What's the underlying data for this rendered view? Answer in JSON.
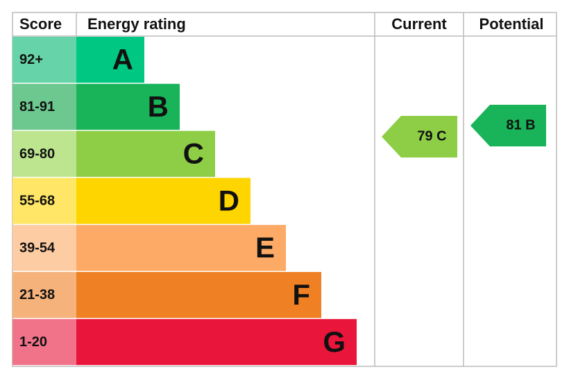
{
  "header": {
    "score": "Score",
    "rating": "Energy rating",
    "current": "Current",
    "potential": "Potential"
  },
  "bands": [
    {
      "score": "92+",
      "letter": "A",
      "color": "#00c781",
      "light": "#66d4a8"
    },
    {
      "score": "81-91",
      "letter": "B",
      "color": "#19b459",
      "light": "#6cc88f"
    },
    {
      "score": "69-80",
      "letter": "C",
      "color": "#8dce46",
      "light": "#bde58f"
    },
    {
      "score": "55-68",
      "letter": "D",
      "color": "#ffd500",
      "light": "#ffe666"
    },
    {
      "score": "39-54",
      "letter": "E",
      "color": "#fcaa65",
      "light": "#fdcca3"
    },
    {
      "score": "21-38",
      "letter": "F",
      "color": "#ef8023",
      "light": "#f5b27b"
    },
    {
      "score": "1-20",
      "letter": "G",
      "color": "#e9153b",
      "light": "#f0738a"
    }
  ],
  "current": {
    "label": "79 C",
    "color": "#8dce46"
  },
  "potential": {
    "label": "81 B",
    "color": "#19b459"
  }
}
